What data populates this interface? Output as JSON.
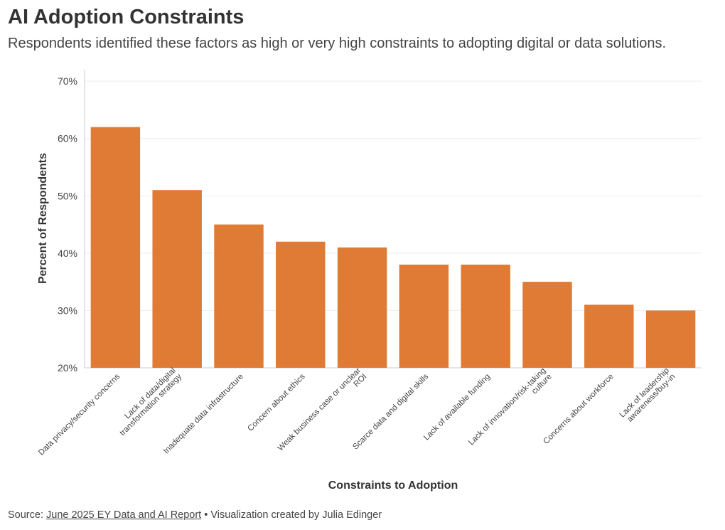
{
  "title": "AI Adoption Constraints",
  "subtitle": "Respondents identified these factors as high or very high constraints to adopting digital or data solutions.",
  "source": {
    "prefix": "Source:",
    "link_text": "June 2025 EY Data and AI Report",
    "suffix": "• Visualization created by Julia Edinger"
  },
  "colors": {
    "bar": "#E07B35",
    "grid": "#eeeeee",
    "axis": "#cccccc"
  },
  "chart_data": {
    "type": "bar",
    "title": "AI Adoption Constraints",
    "xlabel": "Constraints to Adoption",
    "ylabel": "Percent of Respondents",
    "ylim": [
      20,
      72
    ],
    "yticks": [
      20,
      30,
      40,
      50,
      60,
      70
    ],
    "ytick_labels": [
      "20%",
      "30%",
      "40%",
      "50%",
      "60%",
      "70%"
    ],
    "grid": true,
    "categories": [
      [
        "Data privacy/security concerns"
      ],
      [
        "Lack of data/digital",
        "transformation strategy"
      ],
      [
        "Inadequate data infrastructure"
      ],
      [
        "Concern about ethics"
      ],
      [
        "Weak business case or unclear",
        "ROI"
      ],
      [
        "Scarce data and digital skills"
      ],
      [
        "Lack of available funding"
      ],
      [
        "Lack of innovation/risk-taking",
        "culture"
      ],
      [
        "Concerns about workforce"
      ],
      [
        "Lack of leadership",
        "awareness/buy-in"
      ]
    ],
    "values": [
      62,
      51,
      45,
      42,
      41,
      38,
      38,
      35,
      31,
      30
    ]
  }
}
